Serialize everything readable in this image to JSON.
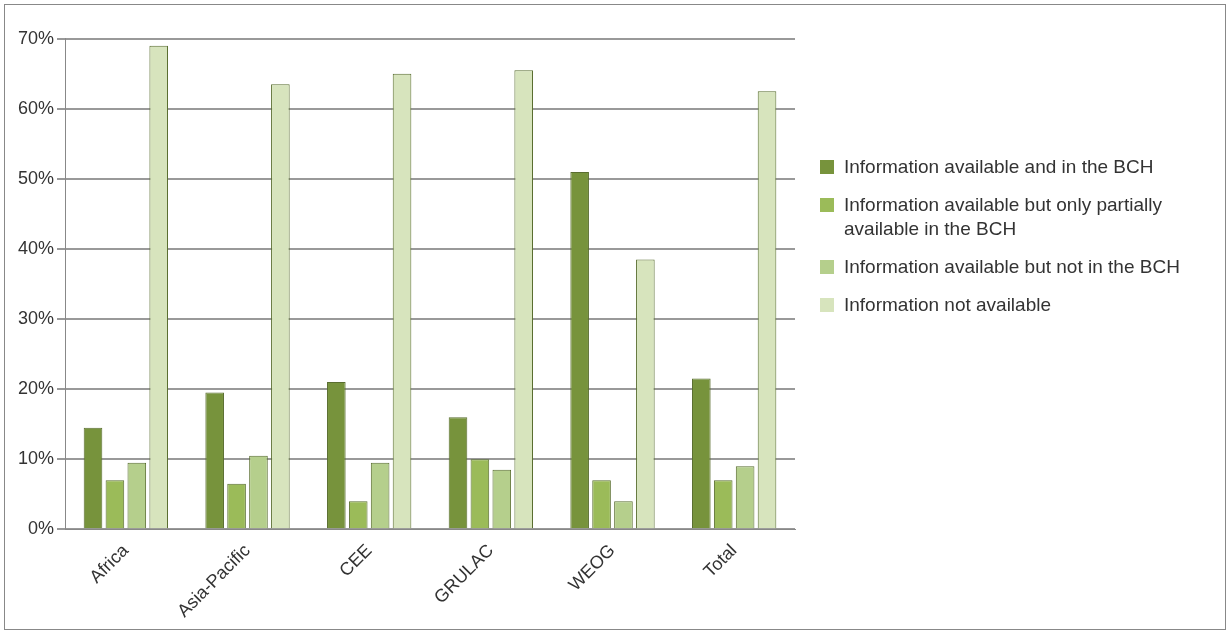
{
  "chart_data": {
    "type": "bar",
    "categories": [
      "Africa",
      "Asia-Pacific",
      "CEE",
      "GRULAC",
      "WEOG",
      "Total"
    ],
    "series": [
      {
        "name": "Information available and in the BCH",
        "color": "#77933c",
        "values": [
          14.5,
          19.5,
          21,
          16,
          51,
          21.5
        ]
      },
      {
        "name": "Information available but only partially available in the BCH",
        "color": "#9bbb59",
        "values": [
          7,
          6.5,
          4,
          10,
          7,
          7
        ]
      },
      {
        "name": "Information available but not in the BCH",
        "color": "#b5cf8c",
        "values": [
          9.5,
          10.5,
          9.5,
          8.5,
          4,
          9
        ]
      },
      {
        "name": "Information not available",
        "color": "#d7e4bd",
        "values": [
          69,
          63.5,
          65,
          65.5,
          38.5,
          62.5
        ]
      }
    ],
    "ylim": [
      0,
      70
    ],
    "yticks": [
      {
        "value": 0,
        "label": "0%"
      },
      {
        "value": 10,
        "label": "10%"
      },
      {
        "value": 20,
        "label": "20%"
      },
      {
        "value": 30,
        "label": "30%"
      },
      {
        "value": 40,
        "label": "40%"
      },
      {
        "value": 50,
        "label": "50%"
      },
      {
        "value": 60,
        "label": "60%"
      },
      {
        "value": 70,
        "label": "70%"
      }
    ],
    "grid": "y",
    "legend": "right"
  }
}
